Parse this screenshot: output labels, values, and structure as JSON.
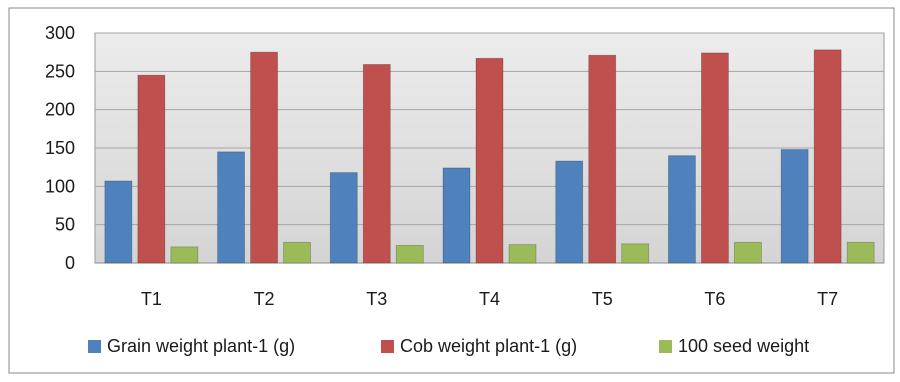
{
  "chart_data": {
    "type": "bar",
    "categories": [
      "T1",
      "T2",
      "T3",
      "T4",
      "T5",
      "T6",
      "T7"
    ],
    "series": [
      {
        "name": "Grain weight plant-1 (g)",
        "color": "#4f81bd",
        "values": [
          107,
          145,
          118,
          124,
          133,
          140,
          148
        ]
      },
      {
        "name": "Cob weight plant-1 (g)",
        "color": "#c0504d",
        "values": [
          245,
          275,
          259,
          267,
          271,
          274,
          278
        ]
      },
      {
        "name": "100 seed weight",
        "color": "#9bbb59",
        "values": [
          21,
          27,
          23,
          24,
          25,
          27,
          27
        ]
      }
    ],
    "ylim": [
      0,
      300
    ],
    "yticks": [
      0,
      50,
      100,
      150,
      200,
      250,
      300
    ],
    "grid": true,
    "legend_position": "bottom",
    "plot_background": "#d9d9d9"
  }
}
